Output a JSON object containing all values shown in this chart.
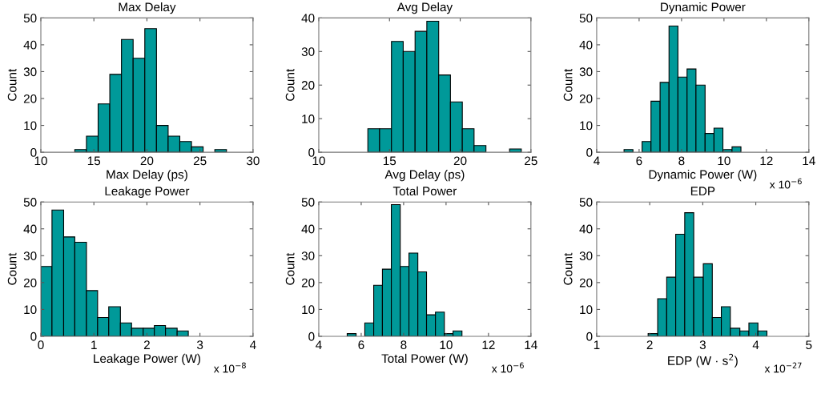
{
  "chart_data": [
    {
      "type": "histogram",
      "title": "Max Delay",
      "xlabel": "Max Delay (ps)",
      "ylabel": "Count",
      "color": "#009999",
      "bins": [
        13.2,
        14.3,
        15.4,
        16.5,
        17.6,
        18.7,
        19.8,
        20.9,
        22.0,
        23.1,
        24.2,
        25.3,
        26.4,
        27.5
      ],
      "values": [
        1,
        6,
        18,
        29,
        42,
        35,
        46,
        10,
        6,
        4,
        2,
        0,
        1
      ],
      "xlim": [
        10,
        30
      ],
      "xticks": [
        10,
        15,
        20,
        25,
        30
      ],
      "ylim": [
        0,
        50
      ],
      "yticks": [
        0,
        10,
        20,
        30,
        40,
        50
      ]
    },
    {
      "type": "histogram",
      "title": "Avg Delay",
      "xlabel": "Avg Delay (ps)",
      "ylabel": "Count",
      "color": "#009999",
      "bins": [
        13.47,
        14.3,
        15.14,
        15.97,
        16.81,
        17.64,
        18.48,
        19.31,
        20.15,
        20.98,
        21.82,
        22.65,
        23.49,
        24.32
      ],
      "values": [
        7,
        7,
        33,
        30,
        36,
        39,
        23,
        15,
        7,
        2,
        0,
        0,
        1
      ],
      "xlim": [
        10,
        25
      ],
      "xticks": [
        10,
        15,
        20,
        25
      ],
      "ylim": [
        0,
        40
      ],
      "yticks": [
        0,
        10,
        20,
        30,
        40
      ]
    },
    {
      "type": "histogram",
      "title": "Dynamic Power",
      "xlabel": "Dynamic Power (W)",
      "ylabel": "Count",
      "color": "#009999",
      "bins": [
        5.29,
        5.71,
        6.14,
        6.56,
        6.99,
        7.41,
        7.83,
        8.26,
        8.68,
        9.11,
        9.53,
        9.95,
        10.38,
        10.8
      ],
      "values": [
        1,
        0,
        4,
        19,
        26,
        47,
        28,
        31,
        25,
        7,
        9,
        1,
        2
      ],
      "xlim": [
        4,
        14
      ],
      "xticks": [
        4,
        6,
        8,
        10,
        12,
        14
      ],
      "ylim": [
        0,
        50
      ],
      "yticks": [
        0,
        10,
        20,
        30,
        40,
        50
      ],
      "annotations": [
        "x 10$^{−6}$"
      ]
    },
    {
      "type": "histogram",
      "title": "Leakage Power",
      "xlabel": "Leakage Power (W)",
      "ylabel": "Count",
      "color": "#009999",
      "bins": [
        0,
        0.21,
        0.43,
        0.64,
        0.86,
        1.07,
        1.28,
        1.5,
        1.71,
        1.93,
        2.14,
        2.35,
        2.57,
        2.78
      ],
      "values": [
        26,
        47,
        37,
        35,
        17,
        7,
        11,
        5,
        3,
        3,
        4,
        3,
        2
      ],
      "xlim": [
        0,
        4
      ],
      "xticks": [
        0,
        1,
        2,
        3,
        4
      ],
      "ylim": [
        0,
        50
      ],
      "yticks": [
        0,
        10,
        20,
        30,
        40,
        50
      ],
      "annotations": [
        "x 10$^{−8}$"
      ]
    },
    {
      "type": "histogram",
      "title": "Total Power",
      "xlabel": "Total Power (W)",
      "ylabel": "Count",
      "color": "#009999",
      "bins": [
        5.34,
        5.76,
        6.17,
        6.59,
        7.0,
        7.42,
        7.84,
        8.25,
        8.67,
        9.08,
        9.5,
        9.92,
        10.33,
        10.75
      ],
      "values": [
        1,
        0,
        5,
        19,
        25,
        49,
        26,
        31,
        24,
        8,
        9,
        1,
        2
      ],
      "xlim": [
        4,
        14
      ],
      "xticks": [
        4,
        6,
        8,
        10,
        12,
        14
      ],
      "ylim": [
        0,
        50
      ],
      "yticks": [
        0,
        10,
        20,
        30,
        40,
        50
      ],
      "annotations": [
        "x 10$^{−6}$"
      ]
    },
    {
      "type": "histogram",
      "title": "EDP",
      "xlabel": "EDP (W · s$^{2}$)",
      "ylabel": "Count",
      "color": "#009999",
      "bins": [
        1.97,
        2.15,
        2.32,
        2.49,
        2.66,
        2.83,
        3.01,
        3.18,
        3.35,
        3.52,
        3.7,
        3.87,
        4.04,
        4.21
      ],
      "values": [
        1,
        14,
        22,
        38,
        46,
        22,
        27,
        7,
        11,
        3,
        2,
        5,
        2
      ],
      "xlim": [
        1,
        5
      ],
      "xticks": [
        1,
        2,
        3,
        4,
        5
      ],
      "ylim": [
        0,
        50
      ],
      "yticks": [
        0,
        10,
        20,
        30,
        40,
        50
      ],
      "annotations": [
        "x 10$^{−27}$"
      ]
    }
  ]
}
